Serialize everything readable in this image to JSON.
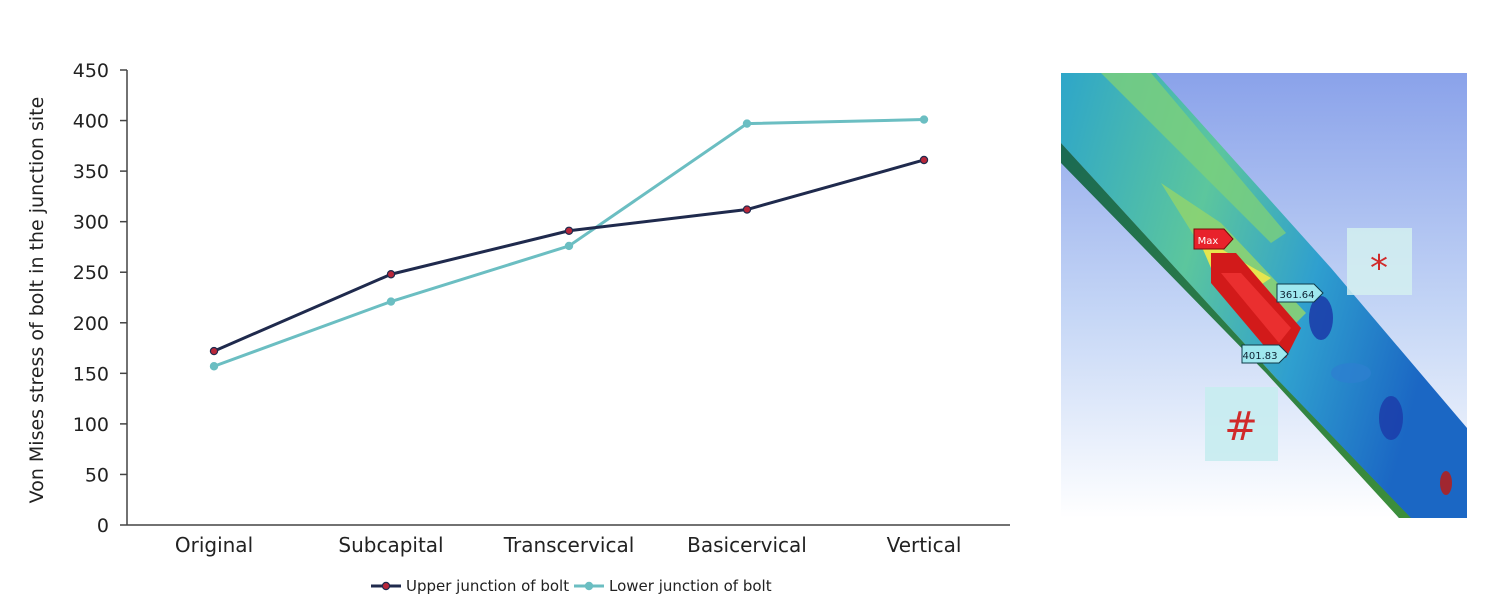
{
  "chart_data": {
    "type": "line",
    "title": "",
    "xlabel": "",
    "ylabel": "Von Mises stress of bolt in the junction site",
    "categories": [
      "Original",
      "Subcapital",
      "Transcervical",
      "Basicervical",
      "Vertical"
    ],
    "ylim": [
      0,
      450
    ],
    "yticks": [
      0,
      50,
      100,
      150,
      200,
      250,
      300,
      350,
      400,
      450
    ],
    "grid": false,
    "legend_position": "bottom-center",
    "series": [
      {
        "name": "Upper junction of bolt",
        "color": "#1f2a4d",
        "marker_color": "#b8273a",
        "values": [
          172,
          248,
          291,
          312,
          361
        ]
      },
      {
        "name": "Lower junction of bolt",
        "color": "#6bbec2",
        "marker_color": "#6bbec2",
        "values": [
          157,
          221,
          276,
          397,
          401
        ]
      }
    ]
  },
  "image_panel": {
    "labels": {
      "max_tag": "Max",
      "upper_value": "361.64",
      "lower_value": "401.83",
      "star_symbol": "*",
      "hash_symbol": "#"
    }
  }
}
